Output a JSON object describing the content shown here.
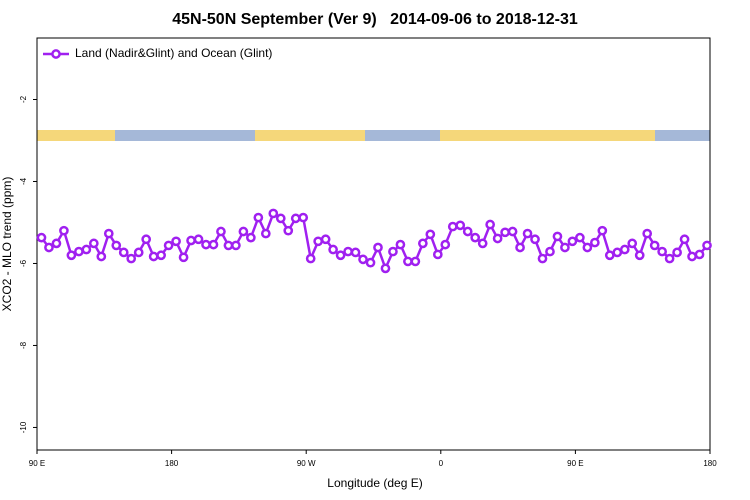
{
  "chart_data": {
    "type": "line",
    "title": "45N-50N September (Ver 9)   2014-09-06 to 2018-12-31",
    "xlabel": "Longitude (deg E)",
    "ylabel": "XCO2 - MLO trend (ppm)",
    "x": [
      93,
      98,
      103,
      108,
      113,
      118,
      123,
      128,
      133,
      138,
      143,
      148,
      153,
      158,
      163,
      168,
      173,
      178,
      183,
      188,
      193,
      198,
      203,
      208,
      213,
      218,
      223,
      228,
      233,
      238,
      243,
      248,
      253,
      258,
      263,
      268,
      273,
      278,
      283,
      288,
      293,
      298,
      303,
      308,
      313,
      318,
      323,
      328,
      333,
      338,
      343,
      348,
      353,
      358,
      363,
      368,
      373,
      378,
      383,
      388,
      393,
      398,
      403,
      408,
      413,
      418,
      423,
      428,
      433,
      438,
      443,
      448,
      453,
      458,
      463,
      468,
      473,
      478,
      483,
      488,
      493,
      498,
      503,
      508,
      513,
      518,
      523,
      528,
      533,
      538
    ],
    "series": [
      {
        "name": "Land (Nadir&Glint) and Ocean (Glint)",
        "color": "#a020f0",
        "values": [
          -5.37,
          -5.61,
          -5.51,
          -5.2,
          -5.8,
          -5.71,
          -5.66,
          -5.51,
          -5.83,
          -5.27,
          -5.56,
          -5.73,
          -5.88,
          -5.73,
          -5.41,
          -5.83,
          -5.8,
          -5.56,
          -5.46,
          -5.85,
          -5.44,
          -5.41,
          -5.54,
          -5.54,
          -5.22,
          -5.56,
          -5.56,
          -5.22,
          -5.37,
          -4.88,
          -5.27,
          -4.78,
          -4.9,
          -5.2,
          -4.9,
          -4.88,
          -5.88,
          -5.46,
          -5.41,
          -5.66,
          -5.8,
          -5.71,
          -5.73,
          -5.9,
          -5.98,
          -5.61,
          -6.12,
          -5.71,
          -5.54,
          -5.95,
          -5.95,
          -5.51,
          -5.29,
          -5.78,
          -5.54,
          -5.1,
          -5.07,
          -5.22,
          -5.37,
          -5.51,
          -5.05,
          -5.39,
          -5.24,
          -5.22,
          -5.61,
          -5.27,
          -5.41,
          -5.88,
          -5.71,
          -5.34,
          -5.61,
          -5.46,
          -5.37,
          -5.61,
          -5.49,
          -5.2,
          -5.8,
          -5.73,
          -5.66,
          -5.51,
          -5.8,
          -5.27,
          -5.56,
          -5.71,
          -5.88,
          -5.73,
          -5.41,
          -5.83,
          -5.78,
          -5.56
        ]
      }
    ],
    "xlim": [
      90,
      540
    ],
    "xticks": [
      {
        "value": 90,
        "label": "90 E"
      },
      180,
      {
        "value": 270,
        "label": "90 W"
      },
      {
        "value": 360,
        "label": "0"
      },
      {
        "value": 450,
        "label": "90 E"
      },
      {
        "value": 540,
        "label": "180"
      }
    ],
    "ylim": [
      -10.55,
      -0.5
    ],
    "yticks": [
      -2,
      -4,
      -6,
      -8,
      -10
    ],
    "legend": "top-left"
  }
}
